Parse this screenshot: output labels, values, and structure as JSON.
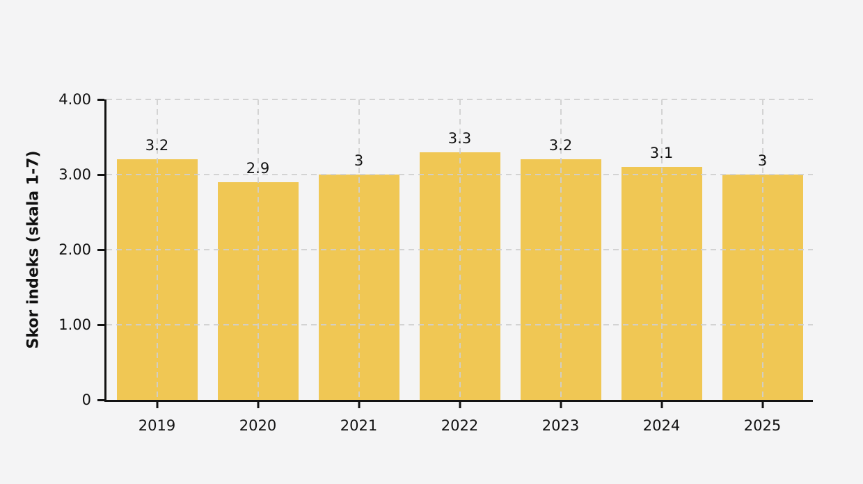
{
  "page": {
    "background_color": "#f4f4f5"
  },
  "chart_data": {
    "type": "bar",
    "title": "",
    "categories": [
      "2019",
      "2020",
      "2021",
      "2022",
      "2023",
      "2024",
      "2025"
    ],
    "values": [
      3.2,
      2.9,
      3,
      3.3,
      3.2,
      3.1,
      3
    ],
    "value_labels": [
      "3.2",
      "2.9",
      "3",
      "3.3",
      "3.2",
      "3.1",
      "3"
    ],
    "xlabel": "",
    "ylabel": "Skor indeks (skala 1-7)",
    "ylim": [
      0,
      4
    ],
    "yticks": [
      {
        "value": 4,
        "label": "4.00"
      },
      {
        "value": 3,
        "label": "3.00"
      },
      {
        "value": 2,
        "label": "2.00"
      },
      {
        "value": 1,
        "label": "1.00"
      },
      {
        "value": 0,
        "label": "0"
      }
    ],
    "grid": {
      "style": "dashed",
      "horizontal": true,
      "vertical": true
    },
    "legend": "none",
    "bar_color": "#f0c754",
    "axis_color": "#131313",
    "grid_color": "#cfcfcf",
    "text_color": "#111111",
    "background_color": "#f4f4f5"
  }
}
